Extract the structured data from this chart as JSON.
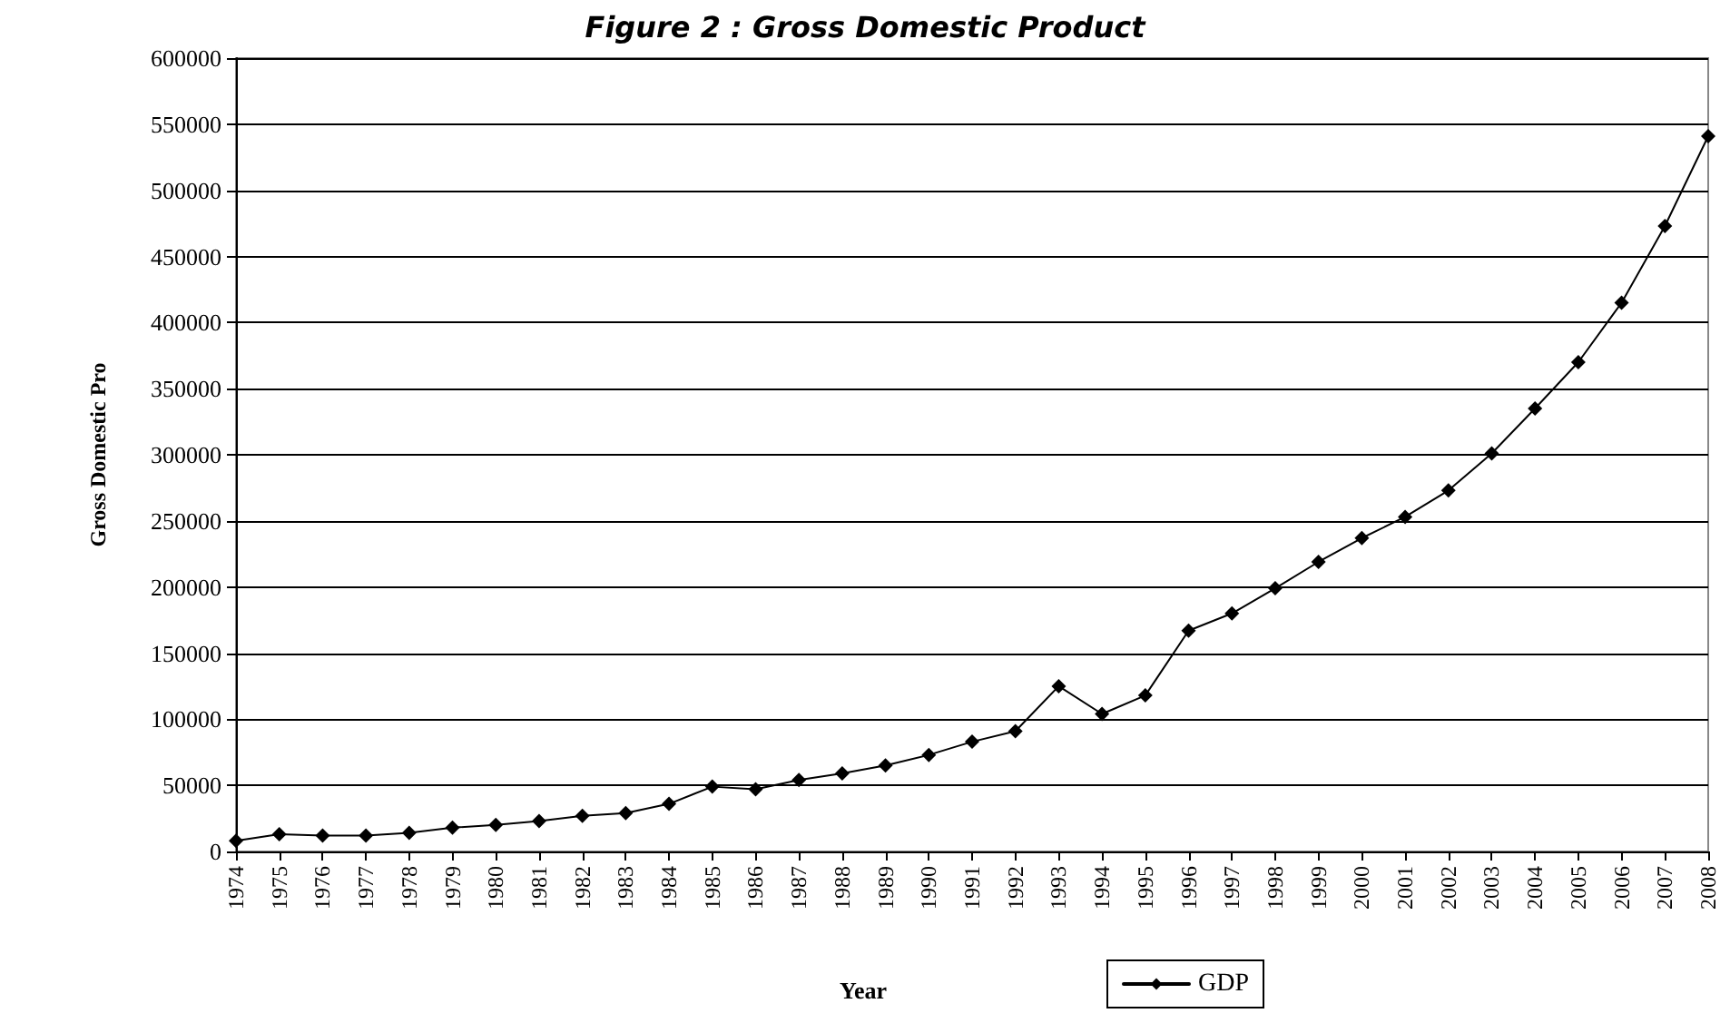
{
  "chart_data": {
    "type": "line",
    "title": "Figure 2 : Gross Domestic Product",
    "xlabel": "Year",
    "ylabel": "Gross Domestic Pro",
    "categories": [
      "1974",
      "1975",
      "1976",
      "1977",
      "1978",
      "1979",
      "1980",
      "1981",
      "1982",
      "1983",
      "1984",
      "1985",
      "1986",
      "1987",
      "1988",
      "1989",
      "1990",
      "1991",
      "1992",
      "1993",
      "1994",
      "1995",
      "1996",
      "1997",
      "1998",
      "1999",
      "2000",
      "2001",
      "2002",
      "2003",
      "2004",
      "2005",
      "2006",
      "2007",
      "2008"
    ],
    "series": [
      {
        "name": "GDP",
        "color": "#000000",
        "values": [
          8000,
          13000,
          12000,
          12000,
          14000,
          18000,
          20000,
          23000,
          27000,
          29000,
          36000,
          49000,
          47000,
          54000,
          59000,
          65000,
          73000,
          83000,
          91000,
          125000,
          104000,
          118000,
          167000,
          180000,
          199000,
          219000,
          237000,
          253000,
          273000,
          301000,
          335000,
          370000,
          415000,
          473000,
          541000
        ]
      }
    ],
    "ylim": [
      0,
      600000
    ],
    "yticks": [
      0,
      50000,
      100000,
      150000,
      200000,
      250000,
      300000,
      350000,
      400000,
      450000,
      500000,
      550000,
      600000
    ],
    "grid": "y",
    "legend": "bottom",
    "marker": "diamond",
    "line_style": "solid"
  }
}
